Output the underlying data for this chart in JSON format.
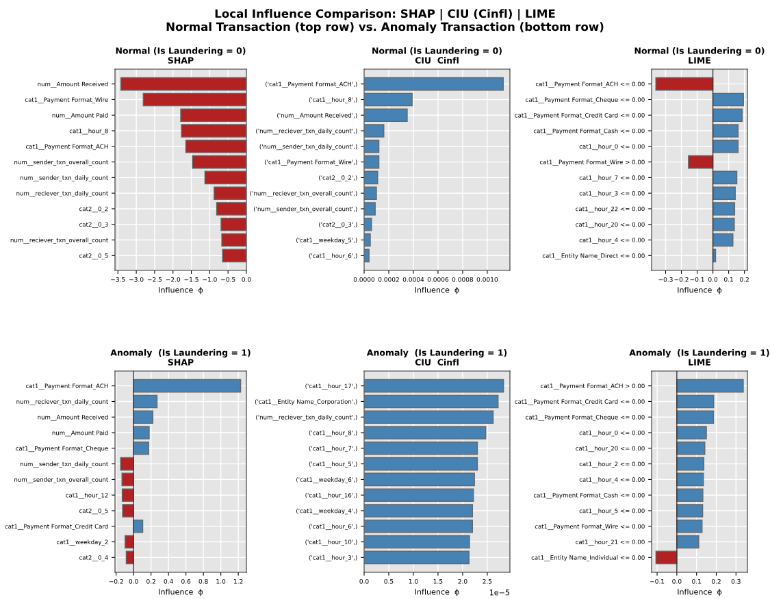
{
  "chart_data": [
    {
      "type": "bar",
      "orientation": "horizontal",
      "title": "Normal (Is Laundering = 0)\nSHAP",
      "xlabel": "Influence  ϕ",
      "grid": true,
      "annotations": [
        "Local Influence Comparison: SHAP | CIU (Cinfl) | LIME\nNormal Transaction (top row) vs. Anomaly Transaction (bottom row)"
      ],
      "categories": [
        "num__Amount Received",
        "cat1__Payment Format_Wire",
        "num__Amount Paid",
        "cat1__hour_8",
        "cat1__Payment Format_ACH",
        "num__sender_txn_overall_count",
        "num__sender_txn_daily_count",
        "num__reciever_txn_daily_count",
        "cat2__0_2",
        "cat2__0_3",
        "num__reciever_txn_overall_count",
        "cat2__0_5"
      ],
      "values": [
        -3.42,
        -2.81,
        -1.79,
        -1.77,
        -1.65,
        -1.47,
        -1.13,
        -0.88,
        -0.81,
        -0.69,
        -0.67,
        -0.65
      ],
      "colors": [
        "#b22222",
        "#b22222",
        "#b22222",
        "#b22222",
        "#b22222",
        "#b22222",
        "#b22222",
        "#b22222",
        "#b22222",
        "#b22222",
        "#b22222",
        "#b22222"
      ],
      "xlim": [
        -3.58,
        0.0
      ],
      "xticks": [
        {
          "value": -3.5,
          "label": "−3.5"
        },
        {
          "value": -3.0,
          "label": "−3.0"
        },
        {
          "value": -2.5,
          "label": "−2.5"
        },
        {
          "value": -2.0,
          "label": "−2.0"
        },
        {
          "value": -1.5,
          "label": "−1.5"
        },
        {
          "value": -1.0,
          "label": "−1.0"
        },
        {
          "value": -0.5,
          "label": "−0.5"
        },
        {
          "value": 0.0,
          "label": "0.0"
        }
      ]
    },
    {
      "type": "bar",
      "orientation": "horizontal",
      "title": "Normal (Is Laundering = 0)\nCIU  Cinfl",
      "xlabel": "Influence  ϕ",
      "grid": true,
      "categories": [
        "('cat1__Payment Format_ACH',)",
        "('cat1__hour_8',)",
        "('num__Amount Received',)",
        "('num__reciever_txn_daily_count',)",
        "('num__sender_txn_daily_count',)",
        "('cat1__Payment Format_Wire',)",
        "('cat2__0_2',)",
        "('num__reciever_txn_overall_count',)",
        "('num__sender_txn_overall_count',)",
        "('cat2__0_3',)",
        "('cat1__weekday_5',)",
        "('cat1__hour_6',)"
      ],
      "values": [
        0.00113,
        0.00039,
        0.00035,
        0.00016,
        0.00012,
        0.00012,
        0.00011,
        0.0001,
        9e-05,
        6e-05,
        5e-05,
        4e-05
      ],
      "colors": [
        "#4682b4",
        "#4682b4",
        "#4682b4",
        "#4682b4",
        "#4682b4",
        "#4682b4",
        "#4682b4",
        "#4682b4",
        "#4682b4",
        "#4682b4",
        "#4682b4",
        "#4682b4"
      ],
      "xlim": [
        0.0,
        0.001184
      ],
      "xticks": [
        {
          "value": 0.0,
          "label": "0.0000"
        },
        {
          "value": 0.0002,
          "label": "0.0002"
        },
        {
          "value": 0.0004,
          "label": "0.0004"
        },
        {
          "value": 0.0006,
          "label": "0.0006"
        },
        {
          "value": 0.0008,
          "label": "0.0008"
        },
        {
          "value": 0.001,
          "label": "0.0010"
        }
      ]
    },
    {
      "type": "bar",
      "orientation": "horizontal",
      "title": "Normal (Is Laundering = 0)\nLIME",
      "xlabel": "Influence  ϕ",
      "grid": true,
      "categories": [
        "cat1__Payment Format_ACH <= 0.00",
        "cat1__Payment Format_Cheque <= 0.00",
        "cat1__Payment Format_Credit Card <= 0.00",
        "cat1__Payment Format_Cash <= 0.00",
        "cat1__hour_0 <= 0.00",
        "cat1__Payment Format_Wire > 0.00",
        "cat1__hour_7 <= 0.00",
        "cat1__hour_3 <= 0.00",
        "cat1__hour_22 <= 0.00",
        "cat1__hour_20 <= 0.00",
        "cat1__hour_4 <= 0.00",
        "cat1__Entity Name_Direct <= 0.00"
      ],
      "values": [
        -0.362,
        0.194,
        0.186,
        0.16,
        0.16,
        -0.155,
        0.152,
        0.142,
        0.138,
        0.136,
        0.127,
        0.017
      ],
      "colors": [
        "#b22222",
        "#4682b4",
        "#4682b4",
        "#4682b4",
        "#4682b4",
        "#b22222",
        "#4682b4",
        "#4682b4",
        "#4682b4",
        "#4682b4",
        "#4682b4",
        "#4682b4"
      ],
      "xlim": [
        -0.389,
        0.219
      ],
      "xticks": [
        {
          "value": -0.3,
          "label": "−0.3"
        },
        {
          "value": -0.2,
          "label": "−0.2"
        },
        {
          "value": -0.1,
          "label": "−0.1"
        },
        {
          "value": 0.0,
          "label": "0.0"
        },
        {
          "value": 0.1,
          "label": "0.1"
        },
        {
          "value": 0.2,
          "label": "0.2"
        }
      ],
      "ref_lines": [
        {
          "axis": "x",
          "value": 0,
          "color": "#333333"
        }
      ]
    },
    {
      "type": "bar",
      "orientation": "horizontal",
      "title": "Anomaly  (Is Laundering = 1)\nSHAP",
      "xlabel": "Influence  ϕ",
      "grid": true,
      "categories": [
        "cat1__Payment Format_ACH",
        "num__reciever_txn_daily_count",
        "num__Amount Received",
        "num__Amount Paid",
        "cat1__Payment Format_Cheque",
        "num__sender_txn_daily_count",
        "num__sender_txn_overall_count",
        "cat1__hour_12",
        "cat2__0_5",
        "cat1__Payment Format_Credit Card",
        "cat1__weekday_2",
        "cat2__0_4"
      ],
      "values": [
        1.227,
        0.269,
        0.221,
        0.179,
        0.173,
        -0.149,
        -0.133,
        -0.13,
        -0.126,
        0.105,
        -0.097,
        -0.084
      ],
      "colors": [
        "#4682b4",
        "#4682b4",
        "#4682b4",
        "#4682b4",
        "#4682b4",
        "#b22222",
        "#b22222",
        "#b22222",
        "#b22222",
        "#4682b4",
        "#b22222",
        "#b22222"
      ],
      "xlim": [
        -0.213,
        1.293
      ],
      "xticks": [
        {
          "value": -0.2,
          "label": "−0.2"
        },
        {
          "value": 0.0,
          "label": "0.0"
        },
        {
          "value": 0.2,
          "label": "0.2"
        },
        {
          "value": 0.4,
          "label": "0.4"
        },
        {
          "value": 0.6,
          "label": "0.6"
        },
        {
          "value": 0.8,
          "label": "0.8"
        },
        {
          "value": 1.0,
          "label": "1.0"
        },
        {
          "value": 1.2,
          "label": "1.2"
        }
      ],
      "ref_lines": [
        {
          "axis": "x",
          "value": 0,
          "color": "#333333"
        }
      ]
    },
    {
      "type": "bar",
      "orientation": "horizontal",
      "title": "Anomaly  (Is Laundering = 1)\nCIU  Cinfl",
      "xlabel": "Influence  ϕ",
      "grid": true,
      "annotations": [
        "1e−5"
      ],
      "categories": [
        "('cat1__hour_17',)",
        "('cat1__Entity Name_Corporation',)",
        "('num__reciever_txn_daily_count',)",
        "('cat1__hour_8',)",
        "('cat1__hour_7',)",
        "('cat1__hour_5',)",
        "('cat1__weekday_6',)",
        "('cat1__hour_16',)",
        "('cat1__weekday_4',)",
        "('cat1__hour_6',)",
        "('cat1__hour_10',)",
        "('cat1__hour_3',)"
      ],
      "values": [
        2.83,
        2.72,
        2.62,
        2.47,
        2.3,
        2.3,
        2.24,
        2.22,
        2.2,
        2.2,
        2.14,
        2.13
      ],
      "colors": [
        "#4682b4",
        "#4682b4",
        "#4682b4",
        "#4682b4",
        "#4682b4",
        "#4682b4",
        "#4682b4",
        "#4682b4",
        "#4682b4",
        "#4682b4",
        "#4682b4",
        "#4682b4"
      ],
      "xlim": [
        0.0,
        2.96
      ],
      "xticks": [
        {
          "value": 0.0,
          "label": "0.0"
        },
        {
          "value": 0.5,
          "label": "0.5"
        },
        {
          "value": 1.0,
          "label": "1.0"
        },
        {
          "value": 1.5,
          "label": "1.5"
        },
        {
          "value": 2.0,
          "label": "2.0"
        },
        {
          "value": 2.5,
          "label": "2.5"
        }
      ]
    },
    {
      "type": "bar",
      "orientation": "horizontal",
      "title": "Anomaly  (Is Laundering = 1)\nLIME",
      "xlabel": "Influence  ϕ",
      "grid": true,
      "categories": [
        "cat1__Payment Format_ACH > 0.00",
        "cat1__Payment Format_Credit Card <= 0.00",
        "cat1__Payment Format_Cheque <= 0.00",
        "cat1__hour_0 <= 0.00",
        "cat1__hour_20 <= 0.00",
        "cat1__hour_2 <= 0.00",
        "cat1__hour_4 <= 0.00",
        "cat1__Payment Format_Cash <= 0.00",
        "cat1__hour_5 <= 0.00",
        "cat1__Payment Format_Wire <= 0.00",
        "cat1__hour_21 <= 0.00",
        "cat1__Entity Name_Individual <= 0.00"
      ],
      "values": [
        0.337,
        0.187,
        0.186,
        0.15,
        0.142,
        0.137,
        0.135,
        0.132,
        0.131,
        0.128,
        0.111,
        -0.106
      ],
      "colors": [
        "#4682b4",
        "#4682b4",
        "#4682b4",
        "#4682b4",
        "#4682b4",
        "#4682b4",
        "#4682b4",
        "#4682b4",
        "#4682b4",
        "#4682b4",
        "#4682b4",
        "#b22222"
      ],
      "xlim": [
        -0.128,
        0.358
      ],
      "xticks": [
        {
          "value": -0.1,
          "label": "−0.1"
        },
        {
          "value": 0.0,
          "label": "0.0"
        },
        {
          "value": 0.1,
          "label": "0.1"
        },
        {
          "value": 0.2,
          "label": "0.2"
        },
        {
          "value": 0.3,
          "label": "0.3"
        }
      ],
      "ref_lines": [
        {
          "axis": "x",
          "value": 0,
          "color": "#333333"
        }
      ]
    }
  ]
}
